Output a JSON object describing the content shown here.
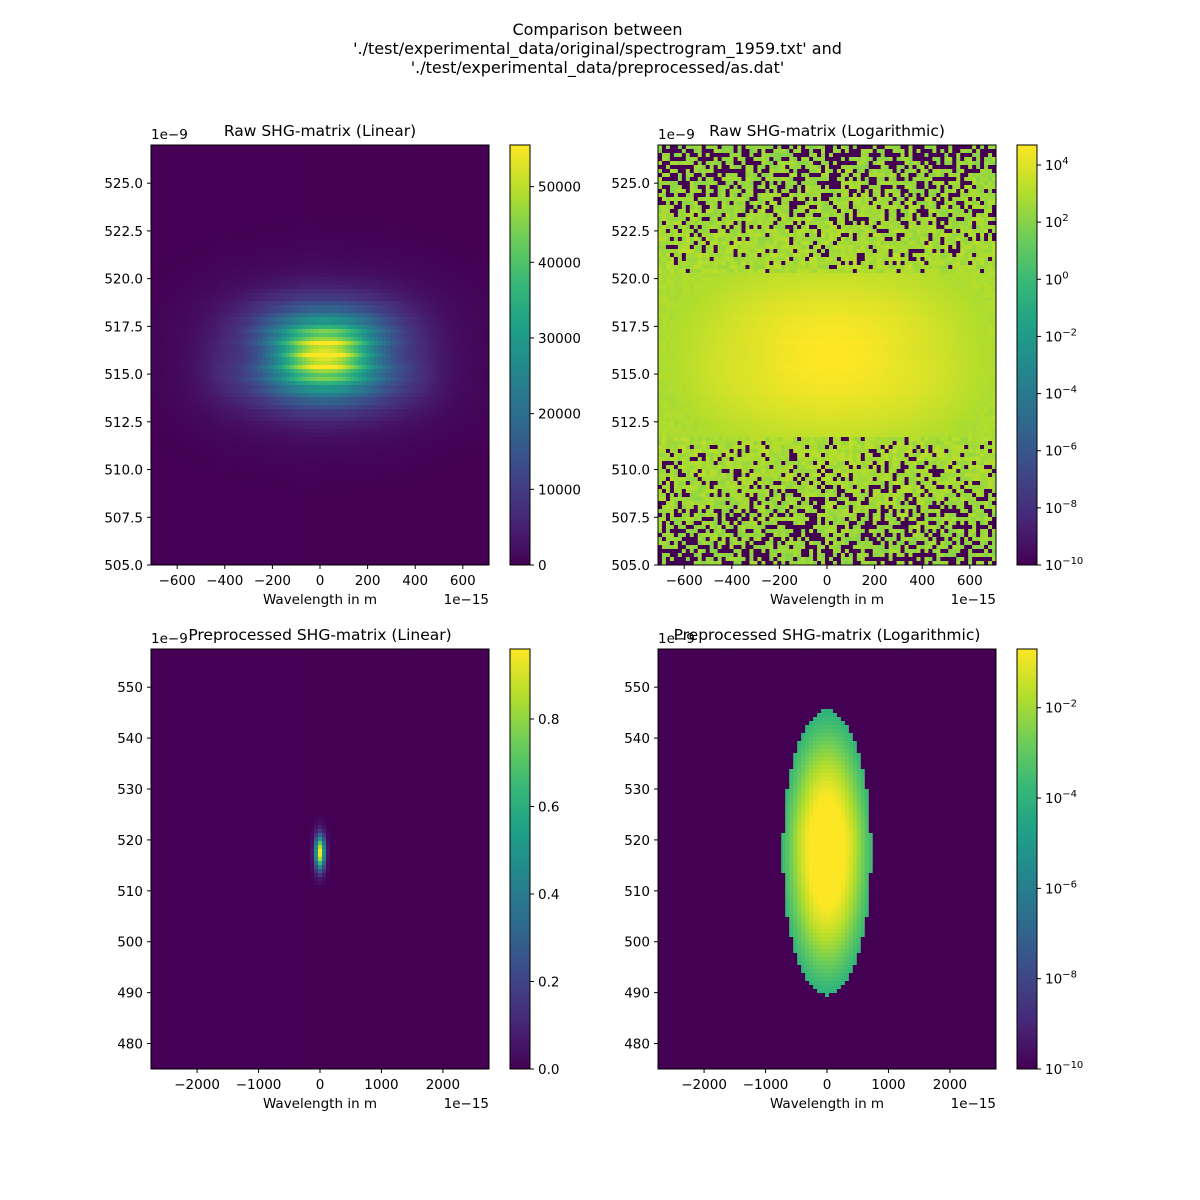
{
  "figure": {
    "title_lines": [
      "Comparison between",
      "'./test/experimental_data/original/spectrogram_1959.txt' and",
      "'./test/experimental_data/preprocessed/as.dat'"
    ]
  },
  "chart_data": [
    {
      "type": "heatmap",
      "title": "Raw SHG-matrix (Linear)",
      "xlabel": "Wavelength in m",
      "x_offset_label": "1e−15",
      "y_offset_label": "1e−9",
      "xlim": [
        -710,
        710
      ],
      "ylim": [
        505.0,
        527.0
      ],
      "xticks": [
        -600,
        -400,
        -200,
        0,
        200,
        400,
        600
      ],
      "xtick_labels": [
        "−600",
        "−400",
        "−200",
        "0",
        "200",
        "400",
        "600"
      ],
      "yticks": [
        505.0,
        507.5,
        510.0,
        512.5,
        515.0,
        517.5,
        520.0,
        522.5,
        525.0
      ],
      "ytick_labels": [
        "505.0",
        "507.5",
        "510.0",
        "512.5",
        "515.0",
        "517.5",
        "520.0",
        "522.5",
        "525.0"
      ],
      "colorbar": {
        "scale": "linear",
        "range": [
          0,
          55500
        ],
        "ticks": [
          0,
          10000,
          20000,
          30000,
          40000,
          50000
        ],
        "tick_labels": [
          "0",
          "10000",
          "20000",
          "30000",
          "40000",
          "50000"
        ]
      },
      "colormap": "viridis",
      "peak": {
        "x": 20,
        "y": 516.0,
        "value": 55500
      }
    },
    {
      "type": "heatmap",
      "title": "Raw SHG-matrix (Logarithmic)",
      "xlabel": "Wavelength in m",
      "x_offset_label": "1e−15",
      "y_offset_label": "1e−9",
      "xlim": [
        -710,
        710
      ],
      "ylim": [
        505.0,
        527.0
      ],
      "xticks": [
        -600,
        -400,
        -200,
        0,
        200,
        400,
        600
      ],
      "xtick_labels": [
        "−600",
        "−400",
        "−200",
        "0",
        "200",
        "400",
        "600"
      ],
      "yticks": [
        505.0,
        507.5,
        510.0,
        512.5,
        515.0,
        517.5,
        520.0,
        522.5,
        525.0
      ],
      "ytick_labels": [
        "505.0",
        "507.5",
        "510.0",
        "512.5",
        "515.0",
        "517.5",
        "520.0",
        "522.5",
        "525.0"
      ],
      "colorbar": {
        "scale": "log",
        "range_exp": [
          -10,
          4.7
        ],
        "ticks_exp": [
          -10,
          -8,
          -6,
          -4,
          -2,
          0,
          2,
          4
        ],
        "tick_bases": [
          "10",
          "10",
          "10",
          "10",
          "10",
          "10",
          "10",
          "10"
        ],
        "tick_exponents": [
          "−10",
          "−8",
          "−6",
          "−4",
          "−2",
          "0",
          "2",
          "4"
        ]
      },
      "colormap": "viridis",
      "peak": {
        "x": 20,
        "y": 516.0,
        "value": 55500
      }
    },
    {
      "type": "heatmap",
      "title": "Preprocessed SHG-matrix (Linear)",
      "xlabel": "Wavelength in m",
      "x_offset_label": "1e−15",
      "y_offset_label": "1e−9",
      "xlim": [
        -2750,
        2750
      ],
      "ylim": [
        475,
        557.5
      ],
      "xticks": [
        -2000,
        -1000,
        0,
        1000,
        2000
      ],
      "xtick_labels": [
        "−2000",
        "−1000",
        "0",
        "1000",
        "2000"
      ],
      "yticks": [
        480,
        490,
        500,
        510,
        520,
        530,
        540,
        550
      ],
      "ytick_labels": [
        "480",
        "490",
        "500",
        "510",
        "520",
        "530",
        "540",
        "550"
      ],
      "colorbar": {
        "scale": "linear",
        "range": [
          0,
          0.96
        ],
        "ticks": [
          0.0,
          0.2,
          0.4,
          0.6,
          0.8
        ],
        "tick_labels": [
          "0.0",
          "0.2",
          "0.4",
          "0.6",
          "0.8"
        ]
      },
      "colormap": "viridis",
      "peak": {
        "x": 0,
        "y": 517.5,
        "value": 0.96
      }
    },
    {
      "type": "heatmap",
      "title": "Preprocessed SHG-matrix (Logarithmic)",
      "xlabel": "Wavelength in m",
      "x_offset_label": "1e−15",
      "y_offset_label": "1e−9",
      "xlim": [
        -2750,
        2750
      ],
      "ylim": [
        475,
        557.5
      ],
      "xticks": [
        -2000,
        -1000,
        0,
        1000,
        2000
      ],
      "xtick_labels": [
        "−2000",
        "−1000",
        "0",
        "1000",
        "2000"
      ],
      "yticks": [
        480,
        490,
        500,
        510,
        520,
        530,
        540,
        550
      ],
      "ytick_labels": [
        "480",
        "490",
        "500",
        "510",
        "520",
        "530",
        "540",
        "550"
      ],
      "colorbar": {
        "scale": "log",
        "range_exp": [
          -10,
          -0.7
        ],
        "ticks_exp": [
          -10,
          -8,
          -6,
          -4,
          -2
        ],
        "tick_bases": [
          "10",
          "10",
          "10",
          "10",
          "10"
        ],
        "tick_exponents": [
          "−10",
          "−8",
          "−6",
          "−4",
          "−2"
        ]
      },
      "colormap": "viridis",
      "peak": {
        "x": 0,
        "y": 517.5,
        "value": 0.96
      }
    }
  ]
}
